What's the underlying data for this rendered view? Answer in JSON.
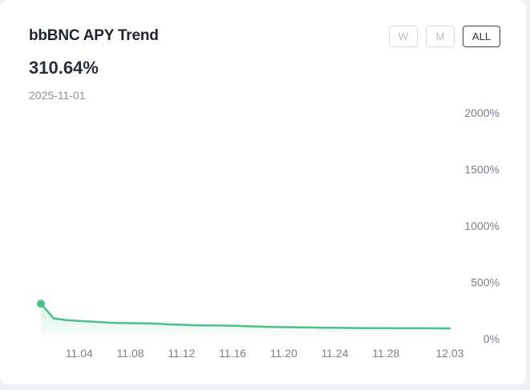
{
  "card": {
    "title": "bbBNC APY Trend",
    "current_value": "310.64%",
    "current_date": "2025-11-01"
  },
  "range_buttons": [
    {
      "label": "W",
      "active": false
    },
    {
      "label": "M",
      "active": false
    },
    {
      "label": "ALL",
      "active": true
    }
  ],
  "colors": {
    "line": "#4cbf8a",
    "area_fill": "#4cbf8a",
    "active_button_border": "#3a3f4a"
  },
  "chart_data": {
    "type": "area",
    "title": "bbBNC APY Trend",
    "xlabel": "",
    "ylabel": "",
    "ylim": [
      0,
      2000
    ],
    "y_ticks": [
      "2000%",
      "1500%",
      "1000%",
      "500%",
      "0%"
    ],
    "y_tick_values": [
      2000,
      1500,
      1000,
      500,
      0
    ],
    "x_ticks": [
      "11.04",
      "11.08",
      "11.12",
      "11.16",
      "11.20",
      "11.24",
      "11.28",
      "12.03"
    ],
    "x_tick_days": [
      3,
      7,
      11,
      15,
      19,
      23,
      27,
      32
    ],
    "x_domain_days": [
      0,
      32
    ],
    "grid": false,
    "legend": "none",
    "series": [
      {
        "x_days": [
          0,
          1,
          2,
          3,
          4,
          5,
          6,
          7,
          8,
          9,
          10,
          11,
          12,
          13,
          14,
          15,
          16,
          17,
          18,
          19,
          20,
          21,
          22,
          23,
          24,
          25,
          26,
          27,
          28,
          29,
          30,
          31,
          32
        ],
        "values": [
          310.64,
          180,
          165,
          158,
          152,
          145,
          140,
          138,
          136,
          135,
          128,
          124,
          120,
          118,
          117,
          115,
          112,
          108,
          105,
          103,
          102,
          100,
          98,
          97,
          96,
          95,
          94,
          94,
          93,
          93,
          93,
          92,
          92
        ]
      }
    ]
  }
}
